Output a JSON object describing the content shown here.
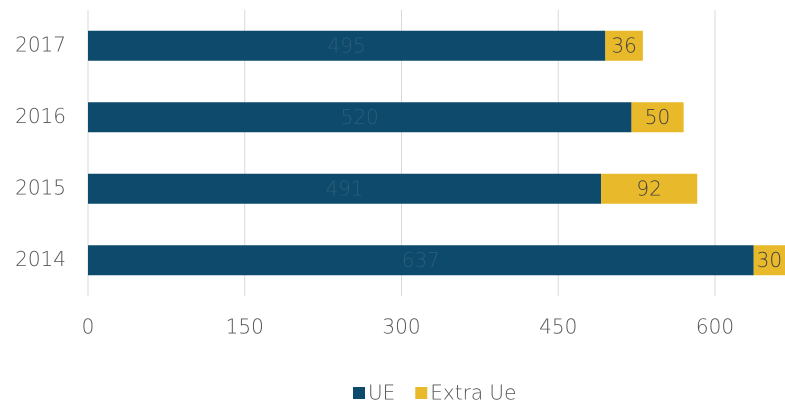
{
  "chart_data": {
    "type": "stacked-bar-horizontal",
    "categories": [
      "2014",
      "2015",
      "2016",
      "2017"
    ],
    "series": [
      {
        "name": "UE",
        "color": "#0d4a6b",
        "label_color": "#2d5c7a",
        "values": [
          637,
          491,
          520,
          495
        ]
      },
      {
        "name": "Extra Ue",
        "color": "#e8b92a",
        "label_color": "#404040",
        "values": [
          30,
          92,
          50,
          36
        ]
      }
    ],
    "xlim": [
      0,
      667
    ],
    "xticks": [
      0,
      150,
      300,
      450,
      600
    ],
    "grid": true,
    "legend": "bottom"
  }
}
